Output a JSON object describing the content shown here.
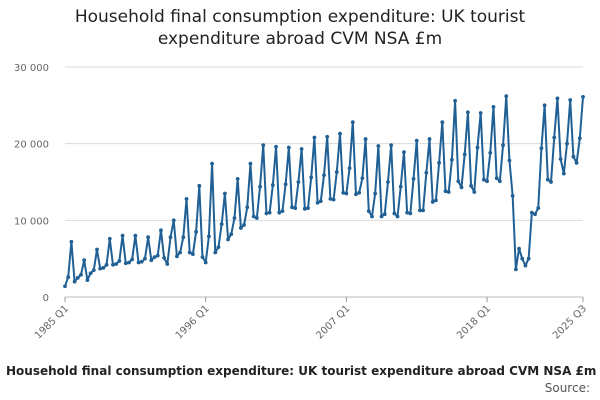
{
  "title_lines": [
    "Household final consumption expenditure: UK tourist",
    "expenditure abroad CVM NSA £m"
  ],
  "footer": {
    "title": "Household final consumption expenditure: UK tourist expenditure abroad CVM NSA £m",
    "source_label": "Source:"
  },
  "colors": {
    "line": "#206095",
    "point": "#206095",
    "grid": "#d9d9d9"
  },
  "chart_data": {
    "type": "line",
    "title": "Household final consumption expenditure: UK tourist expenditure abroad CVM NSA £m",
    "xlabel": "",
    "ylabel": "",
    "ylim": [
      0,
      30000
    ],
    "yticks": [
      0,
      10000,
      20000,
      30000
    ],
    "ytick_labels": [
      "0",
      "10 000",
      "20 000",
      "30 000"
    ],
    "xticks": [
      "1985 Q1",
      "1996 Q1",
      "2007 Q1",
      "2018 Q1",
      "2025 Q3"
    ],
    "grid": true,
    "series": [
      {
        "values": [
          1400,
          2600,
          7200,
          2000,
          2500,
          2900,
          4800,
          2200,
          3100,
          3500,
          6200,
          3700,
          3800,
          4200,
          7600,
          4200,
          4300,
          4700,
          8000,
          4400,
          4500,
          4900,
          8000,
          4500,
          4600,
          5000,
          7800,
          4800,
          5200,
          5400,
          8700,
          5100,
          4300,
          7800,
          10000,
          5300,
          5800,
          7800,
          12800,
          5800,
          5600,
          8500,
          14500,
          5200,
          4500,
          7900,
          17400,
          5800,
          6500,
          9500,
          13500,
          7500,
          8200,
          10300,
          15400,
          9000,
          9400,
          11700,
          17400,
          10500,
          10300,
          14400,
          19800,
          10900,
          11000,
          14600,
          19600,
          11000,
          11200,
          14700,
          19500,
          11700,
          11600,
          15000,
          19300,
          11500,
          11600,
          15600,
          20800,
          12300,
          12500,
          15900,
          20900,
          12800,
          12700,
          16300,
          21300,
          13600,
          13500,
          16800,
          22800,
          13400,
          13600,
          15500,
          20600,
          11200,
          10500,
          13500,
          19700,
          10500,
          10800,
          15000,
          19800,
          10900,
          10500,
          14400,
          18900,
          11000,
          10900,
          15400,
          20400,
          11300,
          11300,
          16200,
          20600,
          12400,
          12600,
          17500,
          22800,
          13800,
          13700,
          17900,
          25600,
          15100,
          14300,
          18600,
          24100,
          14500,
          13700,
          19500,
          24000,
          15300,
          15100,
          18800,
          24800,
          15500,
          15100,
          19800,
          26200,
          17800,
          13200,
          3600,
          6300,
          5000,
          4100,
          5000,
          11000,
          10800,
          11600,
          19400,
          25000,
          15300,
          15000,
          20800,
          25900,
          18000,
          16100,
          20000,
          25700,
          18300,
          17500,
          20700,
          26100
        ]
      }
    ]
  }
}
